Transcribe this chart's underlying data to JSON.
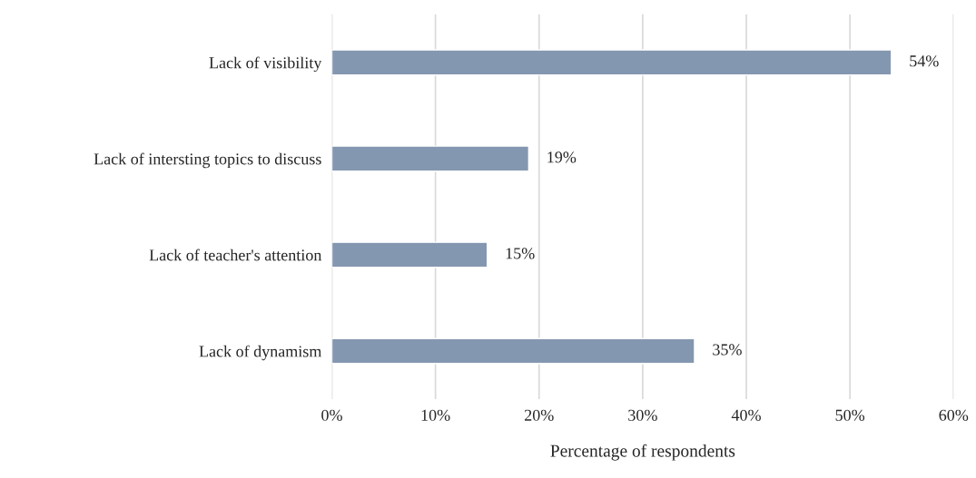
{
  "chart_data": {
    "type": "bar",
    "orientation": "horizontal",
    "xlabel": "Percentage of respondents",
    "categories": [
      "Lack of visibility",
      "Lack of intersting topics to discuss",
      "Lack of teacher's attention",
      "Lack of dynamism"
    ],
    "values": [
      54,
      19,
      15,
      35
    ],
    "color": "#8497b0",
    "value_labels": [
      "54%",
      "19%",
      "15%",
      "35%"
    ],
    "xlim": [
      0,
      60
    ],
    "xticks": [
      {
        "value": 0,
        "label": "0%"
      },
      {
        "value": 10,
        "label": "10%"
      },
      {
        "value": 20,
        "label": "20%"
      },
      {
        "value": 30,
        "label": "30%"
      },
      {
        "value": 40,
        "label": "40%"
      },
      {
        "value": 50,
        "label": "50%"
      },
      {
        "value": 60,
        "label": "60%"
      }
    ],
    "grid": "x",
    "legend": false
  }
}
